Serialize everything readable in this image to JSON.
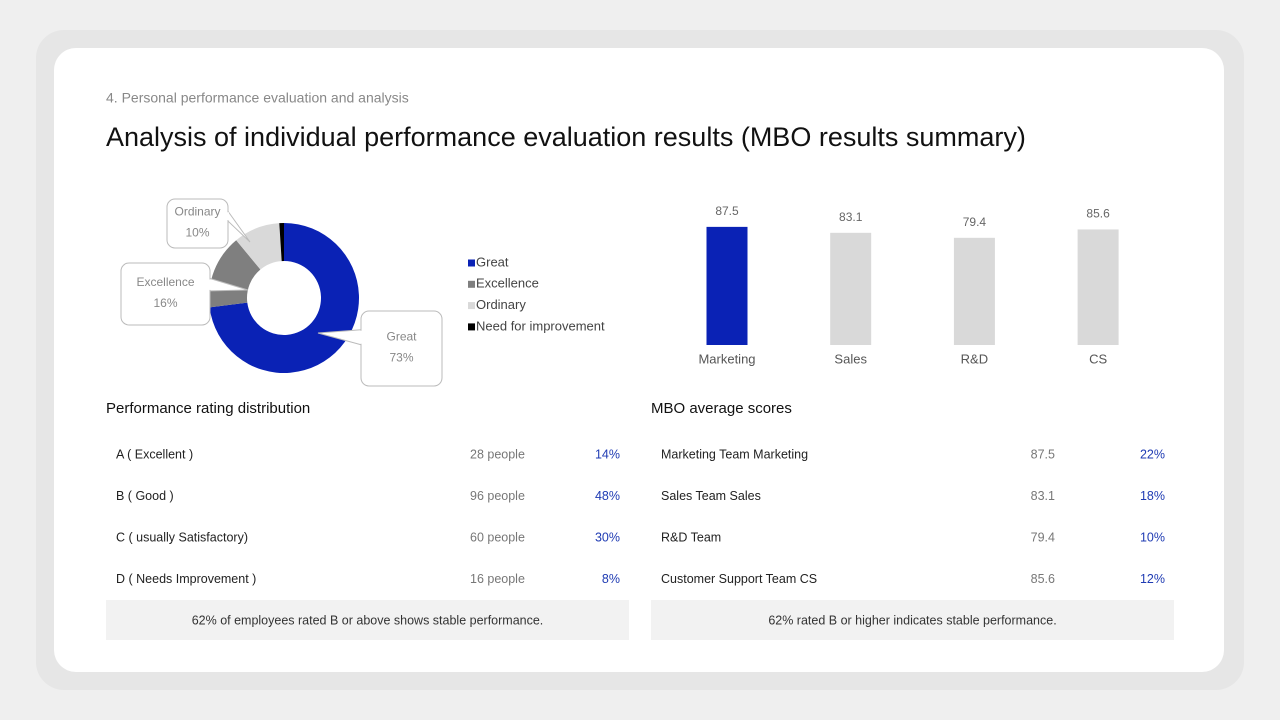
{
  "header": {
    "section": "4. Personal performance evaluation and analysis",
    "title": "Analysis of individual performance evaluation results (MBO results summary)"
  },
  "chart_data": [
    {
      "type": "pie",
      "donut": true,
      "categories": [
        "Great",
        "Excellence",
        "Ordinary",
        "Need for improvement"
      ],
      "values": [
        73,
        16,
        10,
        1
      ],
      "value_labels": [
        "73%",
        "16%",
        "10%",
        null
      ],
      "colors": [
        "#0a22b5",
        "#7f7f7f",
        "#d9d9d9",
        "#000000"
      ],
      "legend": "right"
    },
    {
      "type": "bar",
      "categories": [
        "Marketing",
        "Sales",
        "R&D",
        "CS"
      ],
      "values": [
        87.5,
        83.1,
        79.4,
        85.6
      ],
      "colors": [
        "#0a22b5",
        "#d9d9d9",
        "#d9d9d9",
        "#d9d9d9"
      ],
      "ylim": [
        0,
        100
      ]
    }
  ],
  "tables": [
    {
      "title": "Performance rating distribution",
      "rows": [
        [
          "A ( Excellent )",
          "28 people",
          "14%"
        ],
        [
          "B ( Good )",
          "96 people",
          "48%"
        ],
        [
          "C ( usually Satisfactory)",
          "60 people",
          "30%"
        ],
        [
          "D ( Needs Improvement )",
          "16 people",
          "8%"
        ]
      ],
      "note": "62% of employees rated B or above shows stable performance."
    },
    {
      "title": "MBO average scores",
      "rows": [
        [
          "Marketing Team Marketing",
          "87.5",
          "22%"
        ],
        [
          "Sales Team Sales",
          "83.1",
          "18%"
        ],
        [
          "R&D Team",
          "79.4",
          "10%"
        ],
        [
          "Customer Support Team CS",
          "85.6",
          "12%"
        ]
      ],
      "note": "62% rated B or higher indicates stable performance."
    }
  ]
}
